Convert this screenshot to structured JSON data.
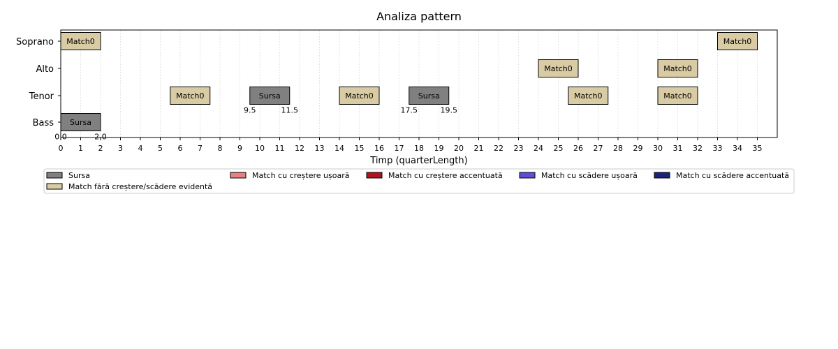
{
  "chart_data": {
    "type": "timeline",
    "title": "Analiza pattern",
    "xlabel": "Timp (quarterLength)",
    "ylabel": "",
    "xlim": [
      0,
      36
    ],
    "grid": "vertical-dotted",
    "xticks": [
      0,
      1,
      2,
      3,
      4,
      5,
      6,
      7,
      8,
      9,
      10,
      11,
      12,
      13,
      14,
      15,
      16,
      17,
      18,
      19,
      20,
      21,
      22,
      23,
      24,
      25,
      26,
      27,
      28,
      29,
      30,
      31,
      32,
      33,
      34,
      35
    ],
    "voices": [
      "Soprano",
      "Alto",
      "Tenor",
      "Bass"
    ],
    "segments": [
      {
        "voice": "Soprano",
        "start": 0,
        "end": 2,
        "label": "Match0",
        "category": "match_flat"
      },
      {
        "voice": "Soprano",
        "start": 33,
        "end": 35,
        "label": "Match0",
        "category": "match_flat"
      },
      {
        "voice": "Alto",
        "start": 24,
        "end": 26,
        "label": "Match0",
        "category": "match_flat"
      },
      {
        "voice": "Alto",
        "start": 30,
        "end": 32,
        "label": "Match0",
        "category": "match_flat"
      },
      {
        "voice": "Tenor",
        "start": 5.5,
        "end": 7.5,
        "label": "Match0",
        "category": "match_flat"
      },
      {
        "voice": "Tenor",
        "start": 9.5,
        "end": 11.5,
        "label": "Sursa",
        "category": "source"
      },
      {
        "voice": "Tenor",
        "start": 14,
        "end": 16,
        "label": "Match0",
        "category": "match_flat"
      },
      {
        "voice": "Tenor",
        "start": 17.5,
        "end": 19.5,
        "label": "Sursa",
        "category": "source"
      },
      {
        "voice": "Tenor",
        "start": 25.5,
        "end": 27.5,
        "label": "Match0",
        "category": "match_flat"
      },
      {
        "voice": "Tenor",
        "start": 30,
        "end": 32,
        "label": "Match0",
        "category": "match_flat"
      },
      {
        "voice": "Bass",
        "start": 0,
        "end": 2,
        "label": "Sursa",
        "category": "source"
      }
    ],
    "annotations": [
      {
        "voice": "Bass",
        "x": 0,
        "text": "0.0"
      },
      {
        "voice": "Bass",
        "x": 2,
        "text": "2.0"
      },
      {
        "voice": "Tenor",
        "x": 9.5,
        "text": "9.5"
      },
      {
        "voice": "Tenor",
        "x": 11.5,
        "text": "11.5"
      },
      {
        "voice": "Tenor",
        "x": 17.5,
        "text": "17.5"
      },
      {
        "voice": "Tenor",
        "x": 19.5,
        "text": "19.5"
      }
    ],
    "legend": {
      "placement": "below",
      "items": [
        {
          "key": "source",
          "label": "Sursa",
          "color": "#808080"
        },
        {
          "key": "match_flat",
          "label": "Match fără creștere/scădere evidentă",
          "color": "#d9cba3"
        },
        {
          "key": "match_up_small",
          "label": "Match cu creștere ușoară",
          "color": "#e88080"
        },
        {
          "key": "match_up_big",
          "label": "Match cu creștere accentuată",
          "color": "#b5121b"
        },
        {
          "key": "match_down_small",
          "label": "Match cu scădere ușoară",
          "color": "#5a4fd6"
        },
        {
          "key": "match_down_big",
          "label": "Match cu scădere accentuată",
          "color": "#1b237a"
        }
      ]
    }
  }
}
